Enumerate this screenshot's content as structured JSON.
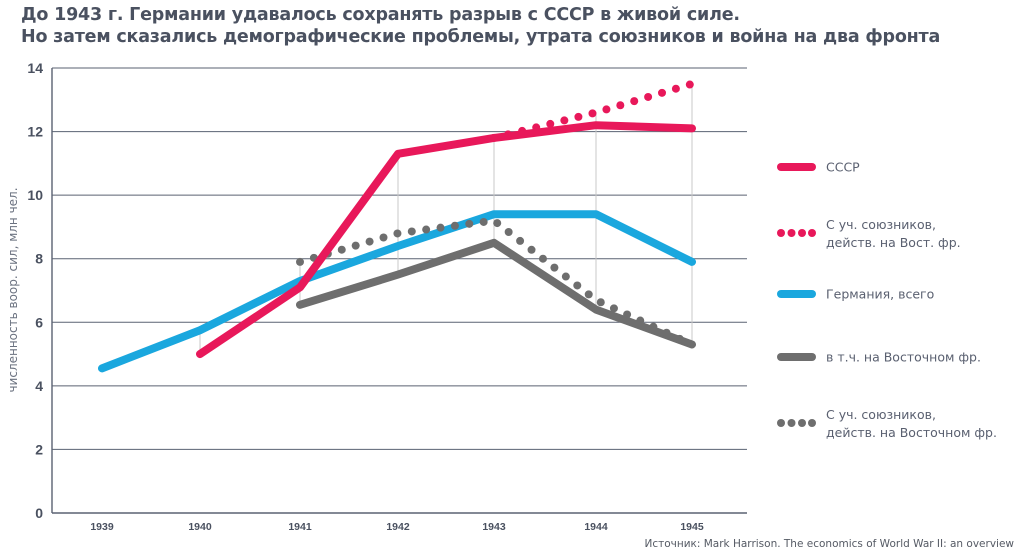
{
  "title": {
    "line1": "До 1943 г. Германии удавалось сохранять разрыв с СССР в живой силе.",
    "line2": "Но затем сказались демографические проблемы, утрата союзников и война на два фронта"
  },
  "source": "Источник: Mark Harrison. The economics of World War II: an overview",
  "colors": {
    "ussr": "#e8185a",
    "germany": "#1aa7de",
    "germany_east": "#6e6e6e",
    "grid": "#5a6272",
    "guide": "#c8c8c8"
  },
  "chart_data": {
    "type": "line",
    "title": "До 1943 г. Германии удавалось сохранять разрыв с СССР в живой силе. Но затем сказались демографические проблемы, утрата союзников и война на два фронта",
    "xlabel": "",
    "ylabel": "численность воор. сил, млн чел.",
    "x": [
      "1939",
      "1940",
      "1941",
      "1942",
      "1943",
      "1944",
      "1945"
    ],
    "ylim": [
      0,
      14
    ],
    "yticks": [
      "0",
      "2",
      "4",
      "6",
      "8",
      "10",
      "12",
      "14"
    ],
    "grid": true,
    "legend_position": "right",
    "series": [
      {
        "name": "СССР",
        "style": "solid",
        "color": "#e8185a",
        "values": [
          null,
          5.0,
          7.1,
          11.3,
          11.8,
          12.2,
          12.1
        ]
      },
      {
        "name": "С уч. союзников, действ. на Вост. фр.",
        "legend_lines": [
          "С уч. союзников,",
          "действ. на Вост. фр."
        ],
        "style": "dotted",
        "color": "#e8185a",
        "values": [
          null,
          null,
          null,
          null,
          11.8,
          12.6,
          13.5
        ]
      },
      {
        "name": "Германия, всего",
        "style": "solid",
        "color": "#1aa7de",
        "values": [
          4.55,
          5.75,
          7.3,
          8.4,
          9.4,
          9.4,
          7.9
        ]
      },
      {
        "name": "в т.ч. на Восточном фр.",
        "style": "solid",
        "color": "#6e6e6e",
        "values": [
          null,
          null,
          6.55,
          7.5,
          8.5,
          6.4,
          5.3
        ]
      },
      {
        "name": "С уч. союзников, действ. на Восточном фр.",
        "legend_lines": [
          "С уч. союзников,",
          "действ. на Восточном фр."
        ],
        "style": "dotted",
        "color": "#6e6e6e",
        "values": [
          null,
          null,
          7.9,
          8.8,
          9.2,
          6.7,
          5.3
        ]
      }
    ]
  }
}
